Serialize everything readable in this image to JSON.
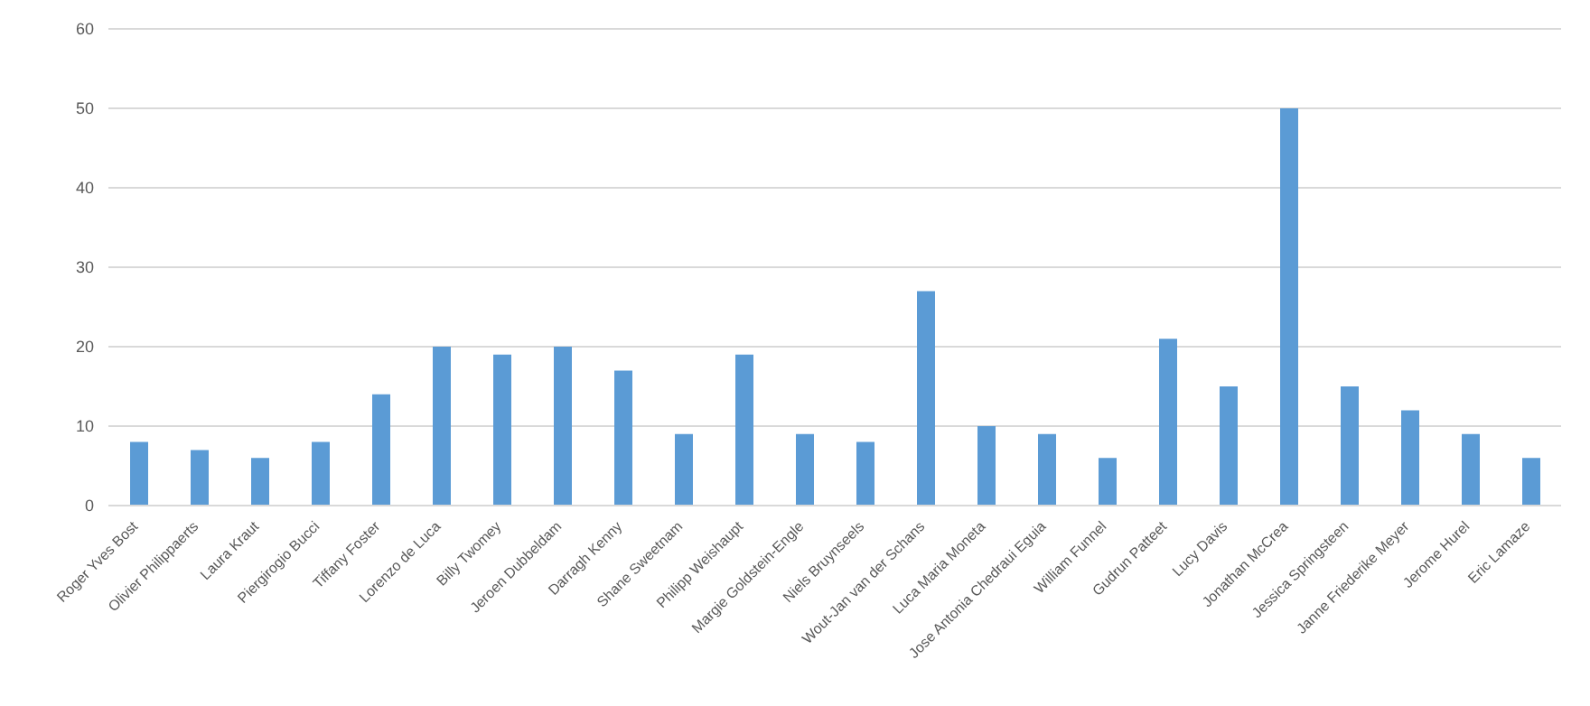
{
  "chart_data": {
    "type": "bar",
    "categories": [
      "Roger Yves Bost",
      "Olivier Philippaerts",
      "Laura Kraut",
      "Piergirogio Bucci",
      "Tiffany Foster",
      "Lorenzo de Luca",
      "Billy Twomey",
      "Jeroen Dubbeldam",
      "Darragh Kenny",
      "Shane Sweetnam",
      "Philipp Weishaupt",
      "Margie Goldstein-Engle",
      "Niels Bruynseels",
      "Wout-Jan van der Schans",
      "Luca Maria Moneta",
      "Jose Antonia Chedraui Eguia",
      "William Funnel",
      "Gudrun Patteet",
      "Lucy Davis",
      "Jonathan McCrea",
      "Jessica Springsteen",
      "Janne Friederike Meyer",
      "Jerome Hurel",
      "Eric Lamaze"
    ],
    "values": [
      8,
      7,
      6,
      8,
      14,
      20,
      19,
      20,
      17,
      9,
      19,
      9,
      8,
      27,
      10,
      9,
      6,
      21,
      15,
      50,
      15,
      12,
      9,
      6
    ],
    "color": "#5b9bd5",
    "ylim": [
      0,
      60
    ],
    "yticks": [
      0,
      10,
      20,
      30,
      40,
      50,
      60
    ],
    "grid": "y"
  }
}
